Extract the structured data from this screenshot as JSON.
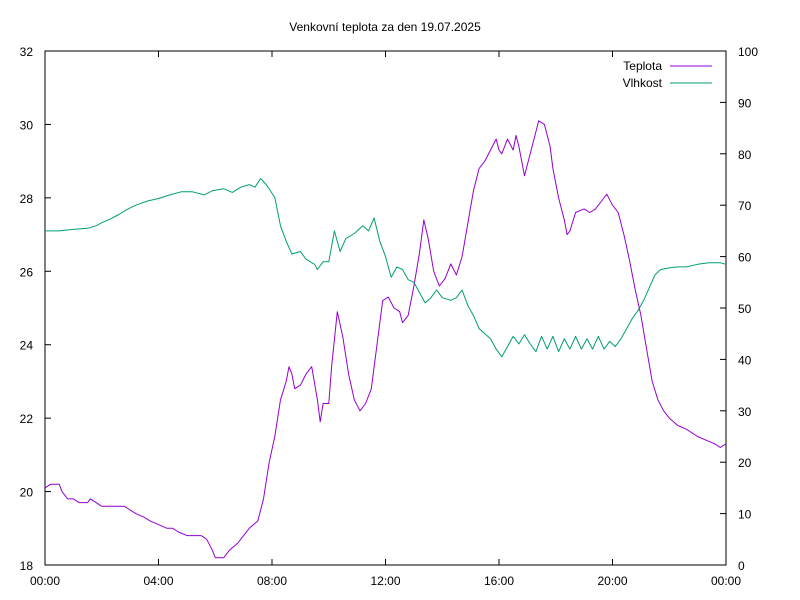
{
  "chart_data": {
    "type": "line",
    "title": "Venkovní teplota za den 19.07.2025",
    "xlabel": "",
    "ylabel": "",
    "y2label": "",
    "xlim": [
      0,
      24
    ],
    "ylim": [
      18,
      32
    ],
    "y2lim": [
      0,
      100
    ],
    "x_ticks": [
      0,
      4,
      8,
      12,
      16,
      20,
      24
    ],
    "x_tick_labels": [
      "00:00",
      "04:00",
      "08:00",
      "12:00",
      "16:00",
      "20:00",
      "00:00"
    ],
    "y_ticks": [
      18,
      20,
      22,
      24,
      26,
      28,
      30,
      32
    ],
    "y2_ticks": [
      0,
      10,
      20,
      30,
      40,
      50,
      60,
      70,
      80,
      90,
      100
    ],
    "grid": false,
    "legend_position": "top-right",
    "series": [
      {
        "name": "Teplota",
        "axis": "left",
        "color": "#9400d3",
        "points": [
          [
            0.0,
            20.1
          ],
          [
            0.2,
            20.2
          ],
          [
            0.5,
            20.2
          ],
          [
            0.6,
            20.0
          ],
          [
            0.8,
            19.8
          ],
          [
            1.0,
            19.8
          ],
          [
            1.2,
            19.7
          ],
          [
            1.5,
            19.7
          ],
          [
            1.6,
            19.8
          ],
          [
            1.8,
            19.7
          ],
          [
            2.0,
            19.6
          ],
          [
            2.5,
            19.6
          ],
          [
            2.8,
            19.6
          ],
          [
            3.0,
            19.5
          ],
          [
            3.2,
            19.4
          ],
          [
            3.5,
            19.3
          ],
          [
            3.7,
            19.2
          ],
          [
            4.0,
            19.1
          ],
          [
            4.3,
            19.0
          ],
          [
            4.5,
            19.0
          ],
          [
            4.7,
            18.9
          ],
          [
            5.0,
            18.8
          ],
          [
            5.5,
            18.8
          ],
          [
            5.7,
            18.7
          ],
          [
            5.9,
            18.4
          ],
          [
            6.0,
            18.2
          ],
          [
            6.3,
            18.2
          ],
          [
            6.5,
            18.4
          ],
          [
            6.8,
            18.6
          ],
          [
            7.0,
            18.8
          ],
          [
            7.2,
            19.0
          ],
          [
            7.5,
            19.2
          ],
          [
            7.7,
            19.8
          ],
          [
            7.9,
            20.8
          ],
          [
            8.1,
            21.5
          ],
          [
            8.3,
            22.5
          ],
          [
            8.5,
            23.0
          ],
          [
            8.6,
            23.4
          ],
          [
            8.7,
            23.2
          ],
          [
            8.8,
            22.8
          ],
          [
            9.0,
            22.9
          ],
          [
            9.2,
            23.2
          ],
          [
            9.4,
            23.4
          ],
          [
            9.6,
            22.5
          ],
          [
            9.7,
            21.9
          ],
          [
            9.8,
            22.4
          ],
          [
            10.0,
            22.4
          ],
          [
            10.1,
            23.4
          ],
          [
            10.3,
            24.9
          ],
          [
            10.5,
            24.2
          ],
          [
            10.7,
            23.2
          ],
          [
            10.9,
            22.5
          ],
          [
            11.1,
            22.2
          ],
          [
            11.3,
            22.4
          ],
          [
            11.5,
            22.8
          ],
          [
            11.7,
            24.0
          ],
          [
            11.9,
            25.2
          ],
          [
            12.1,
            25.3
          ],
          [
            12.3,
            25.0
          ],
          [
            12.5,
            24.9
          ],
          [
            12.6,
            24.6
          ],
          [
            12.8,
            24.8
          ],
          [
            13.0,
            25.6
          ],
          [
            13.2,
            26.5
          ],
          [
            13.35,
            27.4
          ],
          [
            13.5,
            26.9
          ],
          [
            13.7,
            26.0
          ],
          [
            13.9,
            25.6
          ],
          [
            14.1,
            25.8
          ],
          [
            14.3,
            26.2
          ],
          [
            14.5,
            25.9
          ],
          [
            14.7,
            26.4
          ],
          [
            14.9,
            27.3
          ],
          [
            15.1,
            28.2
          ],
          [
            15.3,
            28.8
          ],
          [
            15.5,
            29.0
          ],
          [
            15.7,
            29.3
          ],
          [
            15.9,
            29.6
          ],
          [
            16.0,
            29.3
          ],
          [
            16.1,
            29.2
          ],
          [
            16.3,
            29.6
          ],
          [
            16.5,
            29.3
          ],
          [
            16.6,
            29.7
          ],
          [
            16.7,
            29.4
          ],
          [
            16.9,
            28.6
          ],
          [
            17.1,
            29.2
          ],
          [
            17.3,
            29.8
          ],
          [
            17.4,
            30.1
          ],
          [
            17.6,
            30.0
          ],
          [
            17.8,
            29.4
          ],
          [
            17.9,
            28.8
          ],
          [
            18.1,
            28.0
          ],
          [
            18.3,
            27.4
          ],
          [
            18.4,
            27.0
          ],
          [
            18.5,
            27.1
          ],
          [
            18.7,
            27.6
          ],
          [
            19.0,
            27.7
          ],
          [
            19.2,
            27.6
          ],
          [
            19.4,
            27.7
          ],
          [
            19.6,
            27.9
          ],
          [
            19.8,
            28.1
          ],
          [
            20.0,
            27.8
          ],
          [
            20.2,
            27.6
          ],
          [
            20.4,
            27.0
          ],
          [
            20.6,
            26.3
          ],
          [
            20.8,
            25.5
          ],
          [
            21.0,
            24.8
          ],
          [
            21.2,
            23.9
          ],
          [
            21.4,
            23.0
          ],
          [
            21.6,
            22.5
          ],
          [
            21.8,
            22.2
          ],
          [
            22.0,
            22.0
          ],
          [
            22.3,
            21.8
          ],
          [
            22.6,
            21.7
          ],
          [
            23.0,
            21.5
          ],
          [
            23.3,
            21.4
          ],
          [
            23.6,
            21.3
          ],
          [
            23.8,
            21.2
          ],
          [
            24.0,
            21.3
          ]
        ]
      },
      {
        "name": "Vlhkost",
        "axis": "right",
        "color": "#009e73",
        "points": [
          [
            0.0,
            65.0
          ],
          [
            0.5,
            65.0
          ],
          [
            1.0,
            65.3
          ],
          [
            1.5,
            65.5
          ],
          [
            1.8,
            66.0
          ],
          [
            2.0,
            66.6
          ],
          [
            2.3,
            67.3
          ],
          [
            2.6,
            68.2
          ],
          [
            2.9,
            69.2
          ],
          [
            3.2,
            70.0
          ],
          [
            3.6,
            70.8
          ],
          [
            4.0,
            71.3
          ],
          [
            4.4,
            72.0
          ],
          [
            4.8,
            72.6
          ],
          [
            5.2,
            72.6
          ],
          [
            5.6,
            72.0
          ],
          [
            5.9,
            72.8
          ],
          [
            6.3,
            73.2
          ],
          [
            6.6,
            72.5
          ],
          [
            6.9,
            73.5
          ],
          [
            7.2,
            74.0
          ],
          [
            7.4,
            73.5
          ],
          [
            7.6,
            75.2
          ],
          [
            7.8,
            74.0
          ],
          [
            8.1,
            71.5
          ],
          [
            8.3,
            66.0
          ],
          [
            8.5,
            63.0
          ],
          [
            8.7,
            60.5
          ],
          [
            9.0,
            61.0
          ],
          [
            9.2,
            59.5
          ],
          [
            9.5,
            58.5
          ],
          [
            9.6,
            57.5
          ],
          [
            9.8,
            59.0
          ],
          [
            10.0,
            59.0
          ],
          [
            10.2,
            65.0
          ],
          [
            10.4,
            61.0
          ],
          [
            10.6,
            63.5
          ],
          [
            10.9,
            64.5
          ],
          [
            11.2,
            66.0
          ],
          [
            11.4,
            65.0
          ],
          [
            11.6,
            67.5
          ],
          [
            11.8,
            63.0
          ],
          [
            12.0,
            60.0
          ],
          [
            12.2,
            56.0
          ],
          [
            12.4,
            58.0
          ],
          [
            12.6,
            57.5
          ],
          [
            12.8,
            55.5
          ],
          [
            13.0,
            55.0
          ],
          [
            13.2,
            53.0
          ],
          [
            13.4,
            51.0
          ],
          [
            13.6,
            52.0
          ],
          [
            13.8,
            53.5
          ],
          [
            14.0,
            52.0
          ],
          [
            14.3,
            51.5
          ],
          [
            14.5,
            52.0
          ],
          [
            14.7,
            53.5
          ],
          [
            14.9,
            50.5
          ],
          [
            15.1,
            48.5
          ],
          [
            15.3,
            46.0
          ],
          [
            15.5,
            45.0
          ],
          [
            15.7,
            44.0
          ],
          [
            15.9,
            42.0
          ],
          [
            16.1,
            40.5
          ],
          [
            16.3,
            42.5
          ],
          [
            16.5,
            44.5
          ],
          [
            16.7,
            43.0
          ],
          [
            16.9,
            44.8
          ],
          [
            17.1,
            43.0
          ],
          [
            17.3,
            41.5
          ],
          [
            17.5,
            44.5
          ],
          [
            17.7,
            42.0
          ],
          [
            17.9,
            44.5
          ],
          [
            18.1,
            41.5
          ],
          [
            18.3,
            44.0
          ],
          [
            18.5,
            42.0
          ],
          [
            18.7,
            44.5
          ],
          [
            18.9,
            42.0
          ],
          [
            19.1,
            44.0
          ],
          [
            19.3,
            42.0
          ],
          [
            19.5,
            44.5
          ],
          [
            19.7,
            42.0
          ],
          [
            19.9,
            43.5
          ],
          [
            20.1,
            42.5
          ],
          [
            20.3,
            44.0
          ],
          [
            20.5,
            46.0
          ],
          [
            20.7,
            48.0
          ],
          [
            20.9,
            49.5
          ],
          [
            21.1,
            51.5
          ],
          [
            21.3,
            54.0
          ],
          [
            21.5,
            56.5
          ],
          [
            21.7,
            57.5
          ],
          [
            22.0,
            57.8
          ],
          [
            22.3,
            58.0
          ],
          [
            22.6,
            58.0
          ],
          [
            23.0,
            58.5
          ],
          [
            23.4,
            58.8
          ],
          [
            23.8,
            58.8
          ],
          [
            24.0,
            58.5
          ]
        ]
      }
    ]
  }
}
